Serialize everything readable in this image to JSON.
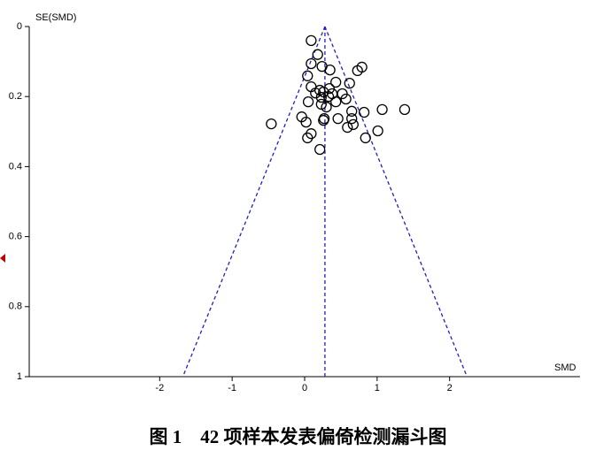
{
  "chart_data": {
    "type": "scatter",
    "caption": "图 1　42 项样本发表偏倚检测漏斗图",
    "y_label": "SE(SMD)",
    "x_label": "SMD",
    "xlim": [
      -3.8,
      3.8
    ],
    "xticks": [
      -2,
      -1,
      0,
      1,
      2
    ],
    "ylim": [
      0,
      1
    ],
    "yticks": [
      0,
      0.2,
      0.4,
      0.6,
      0.8,
      1
    ],
    "y_inverted": true,
    "funnel_center": 0.28,
    "funnel_limits_at_max_se": [
      -1.68,
      2.24
    ],
    "funnel_color": "#2020c0",
    "series": [
      {
        "color": "#000000",
        "x": [
          0.09,
          0.18,
          0.09,
          0.24,
          0.35,
          0.79,
          0.73,
          0.04,
          0.43,
          0.62,
          0.09,
          0.21,
          0.26,
          0.34,
          0.38,
          0.52,
          0.23,
          0.33,
          0.05,
          0.57,
          0.23,
          0.3,
          0.65,
          0.82,
          1.07,
          1.38,
          -0.04,
          0.27,
          0.26,
          0.46,
          0.65,
          -0.46,
          0.02,
          0.67,
          0.59,
          1.01,
          0.09,
          0.04,
          0.84,
          0.21,
          0.43,
          0.15
        ],
        "values": [
          0.04,
          0.08,
          0.106,
          0.114,
          0.124,
          0.116,
          0.126,
          0.141,
          0.159,
          0.162,
          0.172,
          0.182,
          0.187,
          0.177,
          0.192,
          0.192,
          0.202,
          0.2,
          0.215,
          0.207,
          0.222,
          0.23,
          0.242,
          0.245,
          0.237,
          0.237,
          0.258,
          0.263,
          0.268,
          0.263,
          0.263,
          0.278,
          0.273,
          0.28,
          0.288,
          0.298,
          0.306,
          0.318,
          0.318,
          0.351,
          0.215,
          0.19
        ]
      }
    ]
  }
}
